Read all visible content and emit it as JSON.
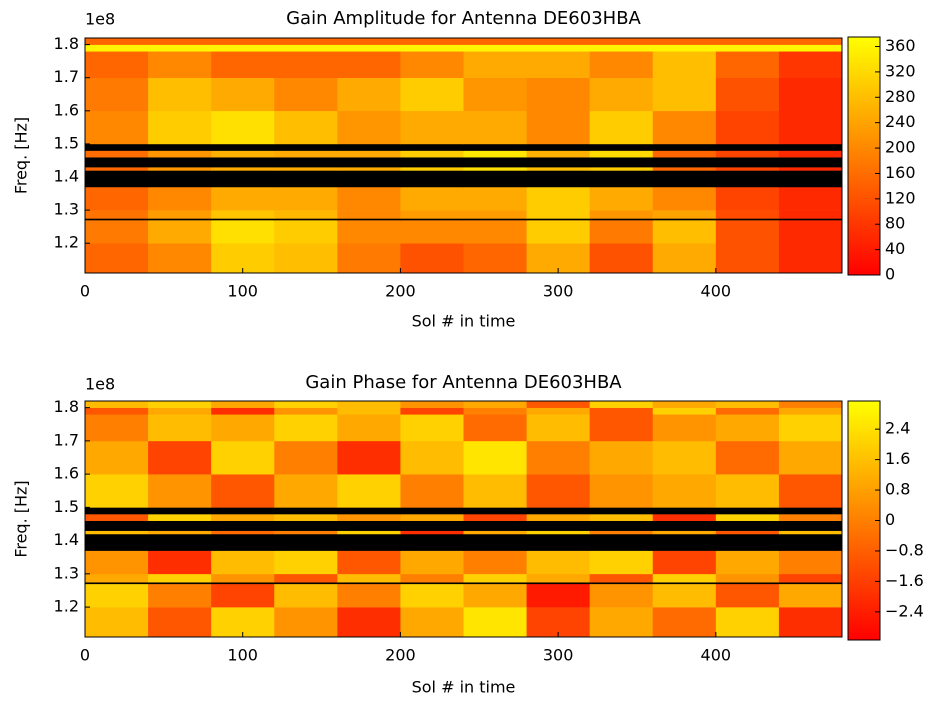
{
  "chart_data": [
    {
      "type": "heatmap",
      "title": "Gain Amplitude for Antenna DE603HBA",
      "xlabel": "Sol # in time",
      "ylabel": "Freq. [Hz]",
      "offset_text": "1e8",
      "x": [
        0,
        40,
        80,
        120,
        160,
        200,
        240,
        280,
        320,
        360,
        400,
        440,
        480
      ],
      "y": [
        111000000,
        120000000,
        127000000,
        127500000,
        130000000,
        137000000,
        142000000,
        143000000,
        146000000,
        148000000,
        150000000,
        160000000,
        170000000,
        178000000,
        180000000,
        182000000
      ],
      "z": [
        [
          150,
          200,
          300,
          280,
          180,
          120,
          150,
          250,
          120,
          250,
          120,
          60
        ],
        [
          180,
          250,
          330,
          300,
          200,
          200,
          200,
          300,
          180,
          280,
          120,
          60
        ],
        [
          null,
          null,
          null,
          null,
          null,
          null,
          null,
          null,
          null,
          null,
          null,
          null
        ],
        [
          170,
          230,
          290,
          270,
          200,
          230,
          230,
          300,
          220,
          240,
          110,
          60
        ],
        [
          150,
          200,
          250,
          250,
          200,
          250,
          250,
          300,
          250,
          200,
          100,
          60
        ],
        [
          null,
          null,
          null,
          null,
          null,
          null,
          null,
          null,
          null,
          null,
          null,
          null
        ],
        [
          150,
          220,
          250,
          250,
          250,
          300,
          330,
          280,
          300,
          150,
          100,
          60
        ],
        [
          null,
          null,
          null,
          null,
          null,
          null,
          null,
          null,
          null,
          null,
          null,
          null
        ],
        [
          160,
          220,
          260,
          250,
          250,
          300,
          340,
          260,
          320,
          150,
          100,
          60
        ],
        [
          null,
          null,
          null,
          null,
          null,
          null,
          null,
          null,
          null,
          null,
          null,
          null
        ],
        [
          200,
          300,
          330,
          280,
          220,
          250,
          250,
          200,
          300,
          200,
          100,
          60
        ],
        [
          180,
          280,
          250,
          200,
          250,
          300,
          220,
          200,
          250,
          280,
          120,
          60
        ],
        [
          150,
          200,
          150,
          150,
          150,
          200,
          250,
          250,
          200,
          280,
          150,
          80
        ],
        [
          360,
          360,
          360,
          360,
          360,
          360,
          360,
          360,
          360,
          360,
          360,
          360
        ],
        [
          150,
          150,
          150,
          150,
          150,
          150,
          150,
          150,
          150,
          150,
          150,
          150
        ]
      ],
      "xlim": [
        0,
        480
      ],
      "ylim": [
        111000000,
        182000000
      ],
      "xticks": [
        0,
        100,
        200,
        300,
        400
      ],
      "yticks": [
        {
          "value": 120000000,
          "label": "1.2"
        },
        {
          "value": 130000000,
          "label": "1.3"
        },
        {
          "value": 140000000,
          "label": "1.4"
        },
        {
          "value": 150000000,
          "label": "1.5"
        },
        {
          "value": 160000000,
          "label": "1.6"
        },
        {
          "value": 170000000,
          "label": "1.7"
        },
        {
          "value": 180000000,
          "label": "1.8"
        }
      ],
      "clim": [
        0,
        375
      ],
      "cticks": [
        0,
        40,
        80,
        120,
        160,
        200,
        240,
        280,
        320,
        360
      ],
      "colormap": [
        "#ff0000",
        "#ffff00"
      ],
      "nan_color": "#000000"
    },
    {
      "type": "heatmap",
      "title": "Gain Phase for Antenna DE603HBA",
      "xlabel": "Sol # in time",
      "ylabel": "Freq. [Hz]",
      "offset_text": "1e8",
      "x": [
        0,
        40,
        80,
        120,
        160,
        200,
        240,
        280,
        320,
        360,
        400,
        440,
        480
      ],
      "y": [
        111000000,
        120000000,
        127000000,
        127500000,
        130000000,
        137000000,
        142000000,
        143000000,
        146000000,
        148000000,
        150000000,
        160000000,
        170000000,
        178000000,
        180000000,
        182000000
      ],
      "z": [
        [
          1.5,
          -1,
          2,
          0.5,
          -2,
          1,
          2.5,
          -1.5,
          1,
          -0.5,
          2,
          -2
        ],
        [
          2,
          0,
          -1.5,
          1.5,
          0,
          2,
          1,
          -2.5,
          0.5,
          1.5,
          -1,
          1
        ],
        [
          null,
          null,
          null,
          null,
          null,
          null,
          null,
          null,
          null,
          null,
          null,
          null
        ],
        [
          1,
          2,
          0.5,
          -1,
          1.5,
          0,
          2,
          1,
          -1,
          2,
          0.5,
          -1.5
        ],
        [
          0.5,
          -2,
          1.5,
          2,
          -1,
          1,
          0,
          1.5,
          2,
          -1.5,
          1,
          0
        ],
        [
          null,
          null,
          null,
          null,
          null,
          null,
          null,
          null,
          null,
          null,
          null,
          null
        ],
        [
          1.5,
          1,
          -0.5,
          0,
          2,
          -2,
          1,
          2,
          0,
          1,
          -1,
          1.5
        ],
        [
          null,
          null,
          null,
          null,
          null,
          null,
          null,
          null,
          null,
          null,
          null,
          null
        ],
        [
          -1,
          2,
          1,
          1.5,
          0.5,
          1,
          -1.5,
          1,
          1.5,
          -2,
          2,
          0
        ],
        [
          null,
          null,
          null,
          null,
          null,
          null,
          null,
          null,
          null,
          null,
          null,
          null
        ],
        [
          2,
          0.5,
          -1,
          1,
          2,
          0,
          1.5,
          -1,
          0.5,
          1,
          1.5,
          -1
        ],
        [
          1,
          -1.5,
          2,
          0,
          -2,
          1.5,
          2.5,
          0,
          1,
          1.5,
          -0.5,
          1
        ],
        [
          0,
          1.5,
          1,
          2,
          1,
          2,
          -0.5,
          1.5,
          -1,
          0.5,
          1,
          2
        ],
        [
          -1,
          1,
          -2,
          0.5,
          1.5,
          -1.5,
          0,
          1,
          -1,
          2,
          -0.5,
          1
        ],
        [
          1.5,
          2,
          1,
          2,
          1.5,
          0.5,
          1,
          -1,
          2,
          1,
          1.5,
          0
        ]
      ],
      "xlim": [
        0,
        480
      ],
      "ylim": [
        111000000,
        182000000
      ],
      "xticks": [
        0,
        100,
        200,
        300,
        400
      ],
      "yticks": [
        {
          "value": 120000000,
          "label": "1.2"
        },
        {
          "value": 130000000,
          "label": "1.3"
        },
        {
          "value": 140000000,
          "label": "1.4"
        },
        {
          "value": 150000000,
          "label": "1.5"
        },
        {
          "value": 160000000,
          "label": "1.6"
        },
        {
          "value": 170000000,
          "label": "1.7"
        },
        {
          "value": 180000000,
          "label": "1.8"
        }
      ],
      "clim": [
        -3.14,
        3.14
      ],
      "cticks": [
        {
          "value": -2.4,
          "label": "−2.4"
        },
        {
          "value": -1.6,
          "label": "−1.6"
        },
        {
          "value": -0.8,
          "label": "−0.8"
        },
        0.0,
        0.8,
        1.6,
        2.4
      ],
      "colormap": [
        "#ff0000",
        "#ffff00"
      ],
      "nan_color": "#000000"
    }
  ]
}
